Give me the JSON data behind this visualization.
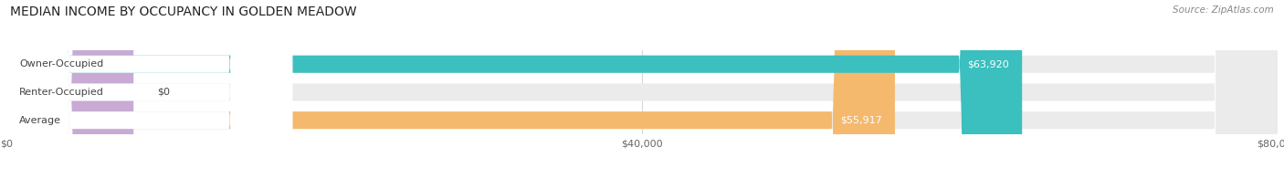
{
  "title": "MEDIAN INCOME BY OCCUPANCY IN GOLDEN MEADOW",
  "source": "Source: ZipAtlas.com",
  "categories": [
    "Owner-Occupied",
    "Renter-Occupied",
    "Average"
  ],
  "values": [
    63920,
    0,
    55917
  ],
  "labels": [
    "$63,920",
    "$0",
    "$55,917"
  ],
  "bar_colors": [
    "#3bbfbf",
    "#c8aad4",
    "#f5b96e"
  ],
  "bar_bg_color": "#ebebeb",
  "xlim": [
    0,
    80000
  ],
  "xticks": [
    0,
    40000,
    80000
  ],
  "xticklabels": [
    "$0",
    "$40,000",
    "$80,000"
  ],
  "title_fontsize": 10,
  "source_fontsize": 7.5,
  "label_fontsize": 8,
  "value_fontsize": 8,
  "tick_fontsize": 8,
  "bar_height": 0.62,
  "background_color": "#ffffff",
  "grid_color": "#d8d8d8",
  "text_color": "#444444",
  "source_color": "#888888"
}
